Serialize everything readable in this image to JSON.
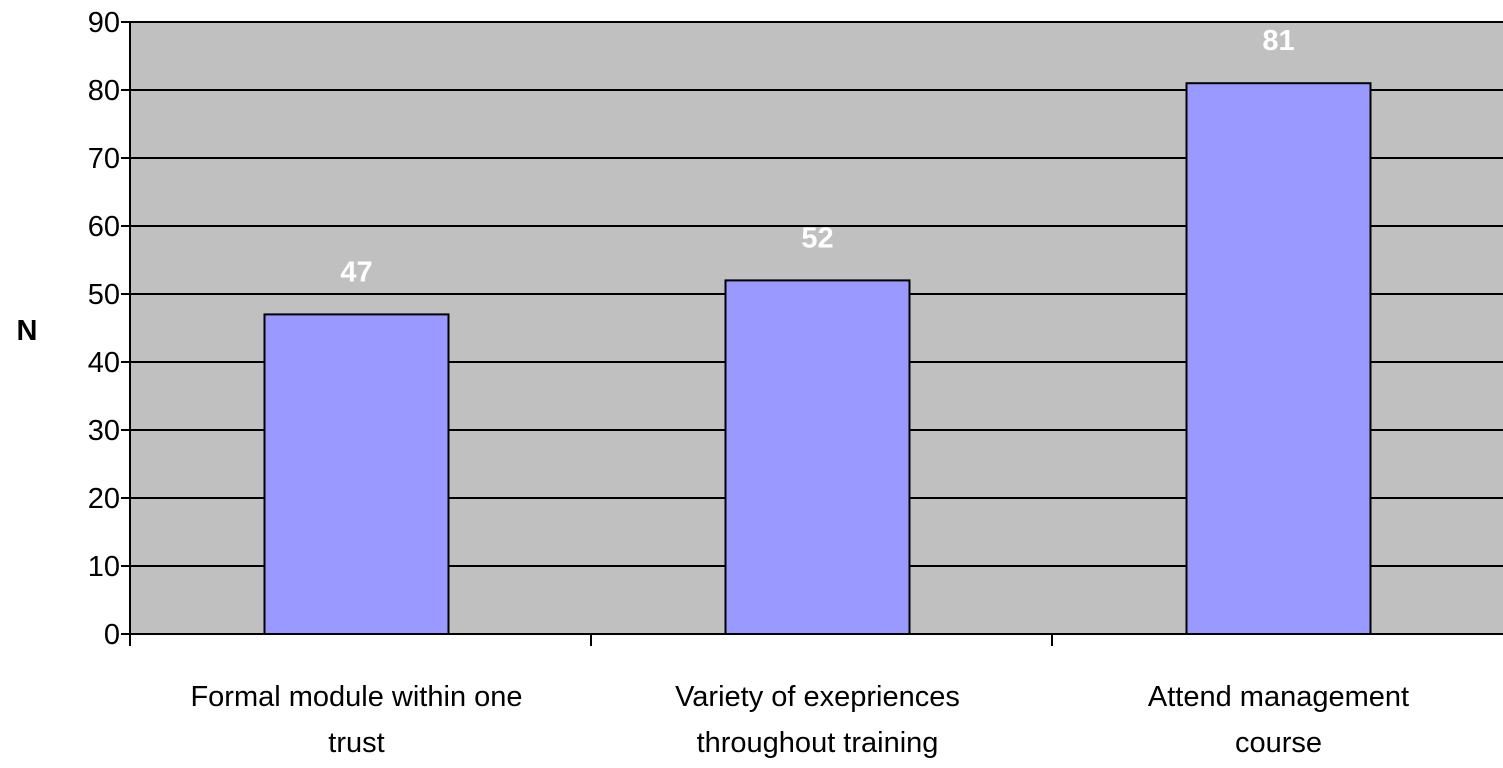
{
  "chart_data": {
    "type": "bar",
    "categories": [
      [
        "Formal module within one",
        "trust"
      ],
      [
        "Variety of exepriences",
        "throughout training"
      ],
      [
        "Attend management",
        "course"
      ]
    ],
    "values": [
      47,
      52,
      81
    ],
    "data_labels": [
      "47",
      "52",
      "81"
    ],
    "ylabel": "N",
    "xlabel": "",
    "ylim": [
      0,
      90
    ],
    "yticks": [
      0,
      10,
      20,
      30,
      40,
      50,
      60,
      70,
      80,
      90
    ],
    "grid": true,
    "legend": "none",
    "colors": {
      "plot_background": "#c0c0c0",
      "bar_fill": "#9999ff",
      "bar_stroke": "#000000",
      "gridline": "#000000",
      "data_label": "#ffffff"
    }
  }
}
